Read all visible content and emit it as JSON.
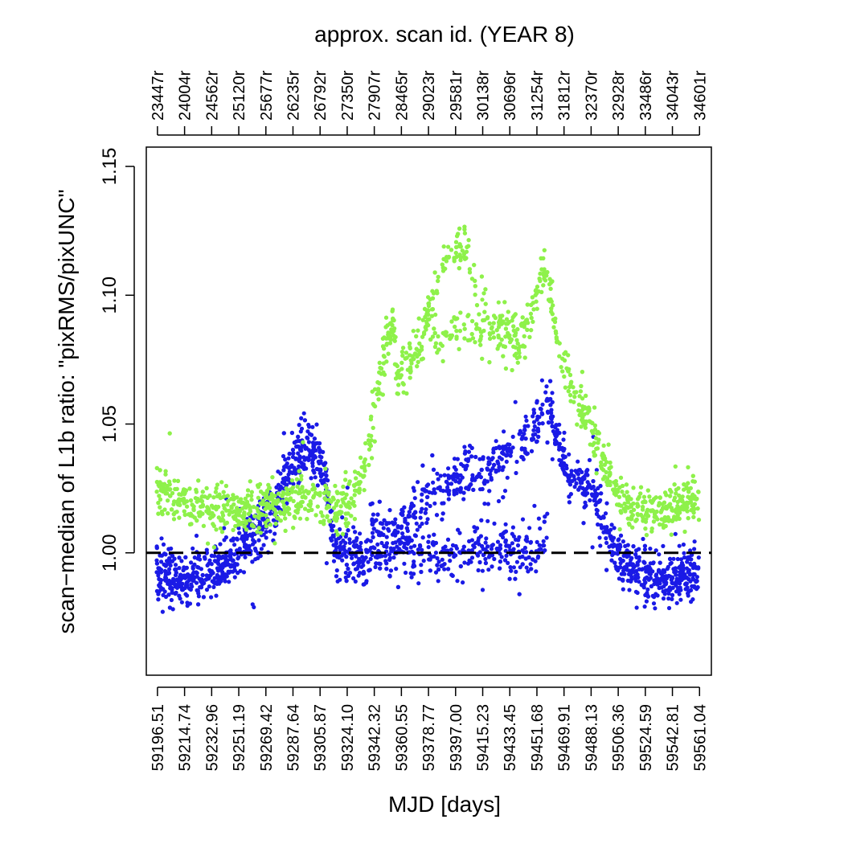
{
  "chart_data": {
    "type": "scatter",
    "title": "approx. scan id. (YEAR 8)",
    "xlabel": "MJD [days]",
    "ylabel": "scan−median of L1b ratio: \"pixRMS/pixUNC\"",
    "xlim": [
      59189.0,
      59569.0
    ],
    "ylim": [
      0.9525,
      1.1575
    ],
    "yticks": [
      1.0,
      1.05,
      1.1,
      1.15
    ],
    "ytick_labels": [
      "1.00",
      "1.05",
      "1.10",
      "1.15"
    ],
    "xticks": [
      59196.51,
      59214.74,
      59232.96,
      59251.19,
      59269.42,
      59287.64,
      59305.87,
      59324.1,
      59342.32,
      59360.55,
      59378.77,
      59397.0,
      59415.23,
      59433.45,
      59451.68,
      59469.91,
      59488.13,
      59506.36,
      59524.59,
      59542.81,
      59561.04
    ],
    "xtick_labels": [
      "59196.51",
      "59214.74",
      "59232.96",
      "59251.19",
      "59269.42",
      "59287.64",
      "59305.87",
      "59324.10",
      "59342.32",
      "59360.55",
      "59378.77",
      "59397.00",
      "59415.23",
      "59433.45",
      "59451.68",
      "59469.91",
      "59488.13",
      "59506.36",
      "59524.59",
      "59542.81",
      "59561.04"
    ],
    "top_tick_labels": [
      "23447r",
      "24004r",
      "24562r",
      "25120r",
      "25677r",
      "26235r",
      "26792r",
      "27350r",
      "27907r",
      "28465r",
      "29023r",
      "29581r",
      "30138r",
      "30696r",
      "31254r",
      "31812r",
      "32370r",
      "32928r",
      "33486r",
      "34043r",
      "34601r"
    ],
    "reference_line": {
      "y": 1.0,
      "style": "dashed",
      "color": "#000000"
    },
    "grid": false,
    "legend": "none",
    "series": [
      {
        "color": "#1a1ae6",
        "spread": 0.0085,
        "points": [
          [
            59196,
            0.993
          ],
          [
            59205,
            0.99
          ],
          [
            59215,
            0.989
          ],
          [
            59225,
            0.992
          ],
          [
            59235,
            0.993
          ],
          [
            59245,
            0.997
          ],
          [
            59255,
            1.004
          ],
          [
            59265,
            1.01
          ],
          [
            59275,
            1.015
          ],
          [
            59282,
            1.03
          ],
          [
            59290,
            1.036
          ],
          [
            59298,
            1.041
          ],
          [
            59305,
            1.038
          ],
          [
            59310,
            1.026
          ],
          [
            59315,
            1.003
          ],
          [
            59325,
            0.999
          ],
          [
            59335,
            0.998
          ],
          [
            59342,
            1.006
          ],
          [
            59350,
            1.008
          ],
          [
            59360,
            1.01
          ],
          [
            59370,
            1.016
          ],
          [
            59380,
            1.023
          ],
          [
            59390,
            1.027
          ],
          [
            59400,
            1.029
          ],
          [
            59410,
            1.031
          ],
          [
            59420,
            1.035
          ],
          [
            59430,
            1.038
          ],
          [
            59440,
            1.042
          ],
          [
            59450,
            1.05
          ],
          [
            59458,
            1.057
          ],
          [
            59465,
            1.046
          ],
          [
            59472,
            1.03
          ],
          [
            59480,
            1.028
          ],
          [
            59488,
            1.025
          ],
          [
            59495,
            1.015
          ],
          [
            59502,
            1.003
          ],
          [
            59510,
            0.997
          ],
          [
            59520,
            0.993
          ],
          [
            59530,
            0.99
          ],
          [
            59542,
            0.989
          ],
          [
            59552,
            0.991
          ],
          [
            59561,
            0.993
          ]
        ],
        "lower_branch": [
          [
            59342,
            0.999
          ],
          [
            59360,
            0.999
          ],
          [
            59380,
            1.0
          ],
          [
            59400,
            1.0
          ],
          [
            59420,
            1.0
          ],
          [
            59440,
            1.0
          ],
          [
            59452,
            1.001
          ],
          [
            59460,
            1.012
          ]
        ]
      },
      {
        "color": "#8ef14a",
        "spread": 0.0075,
        "points": [
          [
            59196,
            1.025
          ],
          [
            59205,
            1.022
          ],
          [
            59215,
            1.02
          ],
          [
            59225,
            1.019
          ],
          [
            59235,
            1.018
          ],
          [
            59245,
            1.017
          ],
          [
            59255,
            1.017
          ],
          [
            59265,
            1.018
          ],
          [
            59275,
            1.019
          ],
          [
            59285,
            1.02
          ],
          [
            59295,
            1.021
          ],
          [
            59305,
            1.02
          ],
          [
            59315,
            1.018
          ],
          [
            59325,
            1.02
          ],
          [
            59332,
            1.025
          ],
          [
            59338,
            1.04
          ],
          [
            59344,
            1.06
          ],
          [
            59350,
            1.08
          ],
          [
            59355,
            1.09
          ],
          [
            59358,
            1.07
          ],
          [
            59365,
            1.072
          ],
          [
            59372,
            1.08
          ],
          [
            59380,
            1.095
          ],
          [
            59390,
            1.112
          ],
          [
            59398,
            1.12
          ],
          [
            59405,
            1.115
          ],
          [
            59412,
            1.105
          ],
          [
            59420,
            1.095
          ],
          [
            59430,
            1.09
          ],
          [
            59440,
            1.085
          ],
          [
            59447,
            1.09
          ],
          [
            59452,
            1.1
          ],
          [
            59457,
            1.11
          ],
          [
            59462,
            1.095
          ],
          [
            59468,
            1.075
          ],
          [
            59475,
            1.065
          ],
          [
            59482,
            1.055
          ],
          [
            59490,
            1.045
          ],
          [
            59500,
            1.03
          ],
          [
            59510,
            1.02
          ],
          [
            59520,
            1.017
          ],
          [
            59530,
            1.015
          ],
          [
            59542,
            1.017
          ],
          [
            59552,
            1.02
          ],
          [
            59561,
            1.023
          ]
        ],
        "lower_branch": [
          [
            59380,
            1.08
          ],
          [
            59395,
            1.085
          ],
          [
            59410,
            1.088
          ],
          [
            59425,
            1.085
          ],
          [
            59440,
            1.078
          ]
        ]
      }
    ]
  }
}
